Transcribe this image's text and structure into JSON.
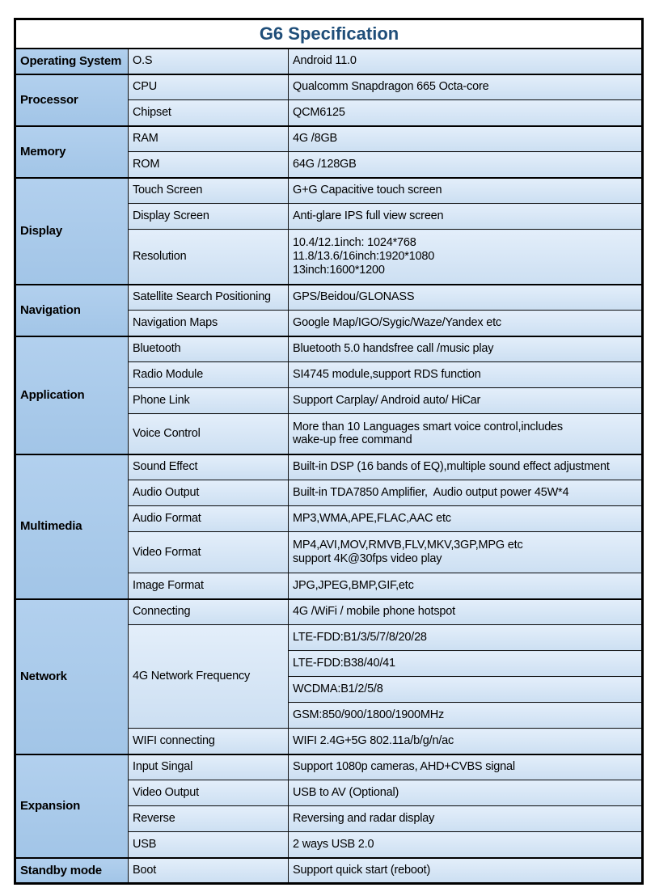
{
  "title": "G6 Specification",
  "colors": {
    "title_text": "#1f4e79",
    "category_bg": "#a6c8e8",
    "cell_bg": "#d7e6f5",
    "border": "#000000"
  },
  "sections": [
    {
      "name": "Operating System",
      "rows": [
        {
          "label": "O.S",
          "value": "Android 11.0"
        }
      ]
    },
    {
      "name": "Processor",
      "rows": [
        {
          "label": "CPU",
          "value": "Qualcomm Snapdragon 665 Octa-core"
        },
        {
          "label": "Chipset",
          "value": "QCM6125"
        }
      ]
    },
    {
      "name": "Memory",
      "rows": [
        {
          "label": "RAM",
          "value": "4G /8GB"
        },
        {
          "label": "ROM",
          "value": "64G /128GB"
        }
      ]
    },
    {
      "name": "Display",
      "rows": [
        {
          "label": "Touch Screen",
          "value": "G+G Capacitive touch screen"
        },
        {
          "label": "Display Screen",
          "value": "Anti-glare IPS full view screen"
        },
        {
          "label": "Resolution",
          "value": "10.4/12.1inch: 1024*768\n11.8/13.6/16inch:1920*1080\n13inch:1600*1200"
        }
      ]
    },
    {
      "name": "Navigation",
      "rows": [
        {
          "label": "Satellite Search Positioning",
          "value": "GPS/Beidou/GLONASS"
        },
        {
          "label": "Navigation Maps",
          "value": "Google Map/IGO/Sygic/Waze/Yandex etc"
        }
      ]
    },
    {
      "name": "Application",
      "rows": [
        {
          "label": "Bluetooth",
          "value": "Bluetooth 5.0 handsfree call /music play"
        },
        {
          "label": "Radio Module",
          "value": "SI4745 module,support RDS function"
        },
        {
          "label": "Phone Link",
          "value": "Support Carplay/ Android auto/ HiCar"
        },
        {
          "label": "Voice Control",
          "value": "More than 10 Languages smart voice control,includes\nwake-up free command"
        }
      ]
    },
    {
      "name": "Multimedia",
      "rows": [
        {
          "label": "Sound Effect",
          "value": "Built-in DSP (16 bands of EQ),multiple sound effect adjustment"
        },
        {
          "label": "Audio Output",
          "value": "Built-in TDA7850 Amplifier,  Audio output power 45W*4"
        },
        {
          "label": "Audio Format",
          "value": "MP3,WMA,APE,FLAC,AAC etc"
        },
        {
          "label": "Video Format",
          "value": "MP4,AVI,MOV,RMVB,FLV,MKV,3GP,MPG etc\nsupport 4K@30fps video play"
        },
        {
          "label": "Image Format",
          "value": "JPG,JPEG,BMP,GIF,etc"
        }
      ]
    },
    {
      "name": "Network",
      "rows": [
        {
          "label": "Connecting",
          "value": "4G /WiFi / mobile phone hotspot"
        },
        {
          "label": "4G Network Frequency",
          "values": [
            "LTE-FDD:B1/3/5/7/8/20/28",
            "LTE-FDD:B38/40/41",
            "WCDMA:B1/2/5/8",
            "GSM:850/900/1800/1900MHz"
          ]
        },
        {
          "label": "WIFI connecting",
          "value": "WIFI 2.4G+5G 802.11a/b/g/n/ac"
        }
      ]
    },
    {
      "name": "Expansion",
      "rows": [
        {
          "label": "Input Singal",
          "value": "Support 1080p cameras, AHD+CVBS signal"
        },
        {
          "label": "Video Output",
          "value": "USB to AV (Optional)"
        },
        {
          "label": "Reverse",
          "value": "Reversing and radar display"
        },
        {
          "label": "USB",
          "value": "2 ways USB 2.0"
        }
      ]
    },
    {
      "name": "Standby mode",
      "rows": [
        {
          "label": "Boot",
          "value": "Support quick start (reboot)"
        }
      ]
    }
  ]
}
